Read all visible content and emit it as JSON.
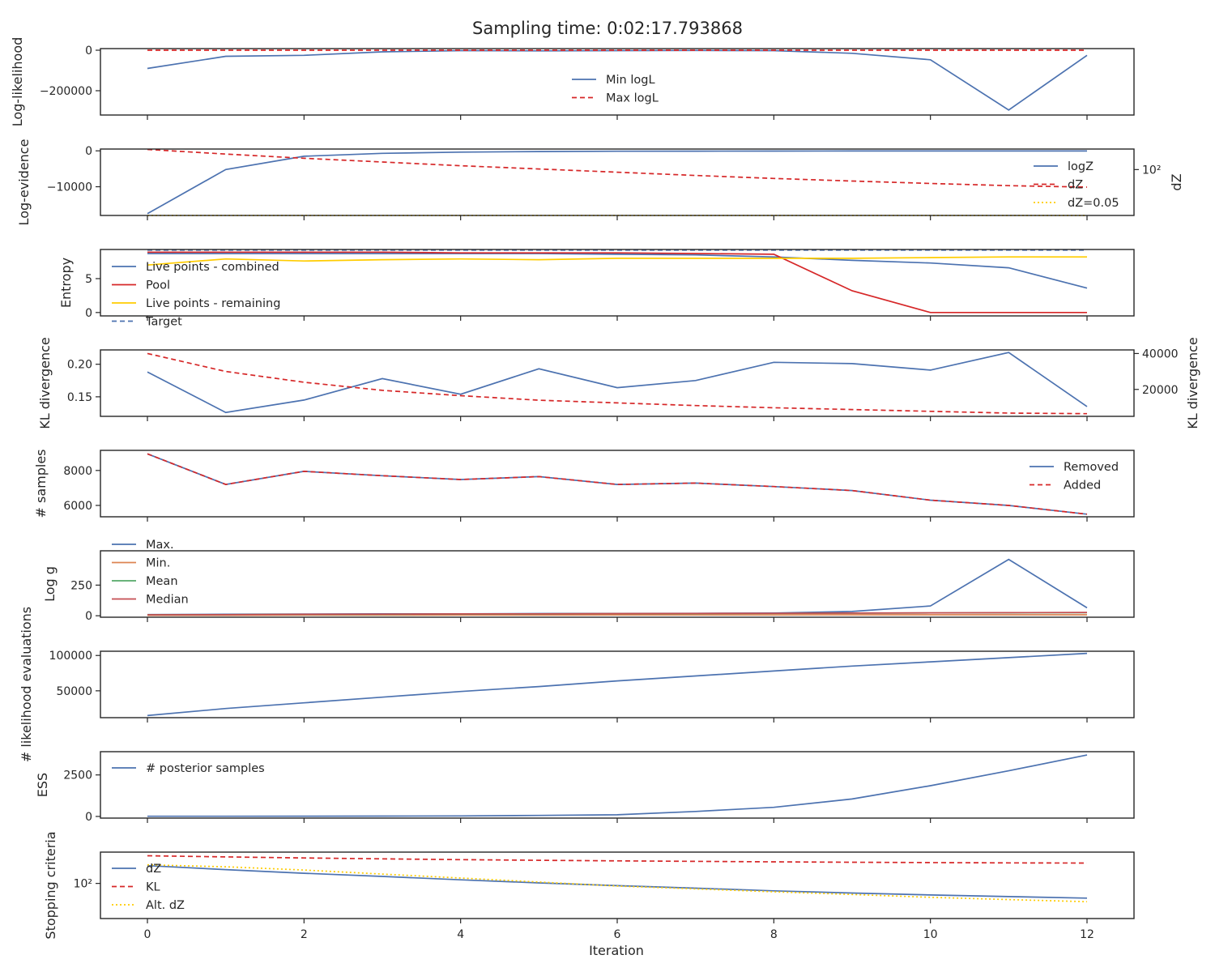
{
  "title": "Sampling time: 0:02:17.793868",
  "colors": {
    "blue": "#4c72b0",
    "red": "#d62728",
    "yellow": "#ffcc00",
    "orange": "#dd8452",
    "green": "#55a868",
    "crimson": "#c44e52"
  },
  "chart_data": [
    {
      "type": "line",
      "ylabel": "Log-likelihood",
      "ylim": [
        -320000,
        8000
      ],
      "yticks": [
        {
          "v": 0,
          "label": "0"
        },
        {
          "v": -200000,
          "label": "−200000"
        }
      ],
      "legend": {
        "position": "center",
        "entries": [
          "Min logL",
          "Max logL"
        ]
      },
      "series": [
        {
          "name": "Min logL",
          "color": "#4c72b0",
          "dash": "solid",
          "values": [
            -90000,
            -30000,
            -25000,
            -8000,
            -2000,
            -3000,
            -2000,
            -1000,
            -2000,
            -15000,
            -47000,
            -295000,
            -25000
          ]
        },
        {
          "name": "Max logL",
          "color": "#d62728",
          "dash": "dashed",
          "values": [
            0,
            0,
            0,
            0,
            0,
            0,
            0,
            0,
            0,
            0,
            0,
            0,
            0
          ]
        }
      ]
    },
    {
      "type": "line",
      "ylabel": "Log-evidence",
      "ylabel_right": "dZ",
      "ylim": [
        -18000,
        500
      ],
      "yticks": [
        {
          "v": 0,
          "label": "0"
        },
        {
          "v": -10000,
          "label": "−10000"
        }
      ],
      "yscale_right": "log",
      "ylim_right": [
        0.05,
        3000
      ],
      "yticks_right": [
        {
          "v": 100,
          "label": "10²"
        }
      ],
      "legend": {
        "position": "right",
        "entries": [
          "logZ",
          "dZ",
          "dZ=0.05"
        ]
      },
      "series": [
        {
          "name": "logZ",
          "color": "#4c72b0",
          "dash": "solid",
          "axis": "left",
          "values": [
            -17500,
            -5200,
            -1500,
            -700,
            -350,
            -200,
            -120,
            -80,
            -60,
            -50,
            -45,
            -42,
            -40
          ]
        },
        {
          "name": "dZ",
          "color": "#d62728",
          "dash": "dashed",
          "axis": "right",
          "values": [
            2800,
            1300,
            650,
            350,
            190,
            110,
            65,
            38,
            23,
            15,
            10,
            7,
            5.5
          ]
        },
        {
          "name": "dZ=0.05",
          "color": "#ffcc00",
          "dash": "dotted",
          "axis": "right",
          "values": [
            0.05,
            0.05,
            0.05,
            0.05,
            0.05,
            0.05,
            0.05,
            0.05,
            0.05,
            0.05,
            0.05,
            0.05,
            0.05
          ]
        }
      ]
    },
    {
      "type": "line",
      "ylabel": "Entropy",
      "ylim": [
        -0.5,
        9.3
      ],
      "yticks": [
        {
          "v": 0,
          "label": "0"
        },
        {
          "v": 5,
          "label": "5"
        }
      ],
      "legend": {
        "position": "left",
        "entries": [
          "Live points - combined",
          "Pool",
          "Live points - remaining",
          "Target"
        ]
      },
      "series": [
        {
          "name": "Live points - combined",
          "color": "#4c72b0",
          "dash": "solid",
          "values": [
            8.7,
            8.7,
            8.7,
            8.7,
            8.7,
            8.7,
            8.6,
            8.5,
            8.2,
            7.7,
            7.3,
            6.6,
            3.6
          ]
        },
        {
          "name": "Pool",
          "color": "#d62728",
          "dash": "solid",
          "values": [
            8.9,
            8.9,
            8.9,
            8.9,
            8.8,
            8.8,
            8.8,
            8.7,
            8.6,
            3.2,
            0,
            0,
            0
          ]
        },
        {
          "name": "Live points - remaining",
          "color": "#ffcc00",
          "dash": "solid",
          "values": [
            7.0,
            7.9,
            7.6,
            7.8,
            7.9,
            7.8,
            8.0,
            8.0,
            8.0,
            8.0,
            8.1,
            8.2,
            8.2
          ]
        },
        {
          "name": "Target",
          "color": "#4c72b0",
          "dash": "dashed",
          "values": [
            9.2,
            9.2,
            9.2,
            9.2,
            9.2,
            9.2,
            9.2,
            9.2,
            9.2,
            9.2,
            9.2,
            9.2,
            9.2
          ]
        }
      ]
    },
    {
      "type": "line",
      "ylabel": "KL divergence",
      "ylabel_right": "KL divergence",
      "ylim": [
        0.12,
        0.222
      ],
      "yticks": [
        {
          "v": 0.15,
          "label": "0.15"
        },
        {
          "v": 0.2,
          "label": "0.20"
        }
      ],
      "ylim_right": [
        5000,
        42000
      ],
      "yticks_right": [
        {
          "v": 20000,
          "label": "20000"
        },
        {
          "v": 40000,
          "label": "40000"
        }
      ],
      "series": [
        {
          "name": "",
          "color": "#4c72b0",
          "dash": "solid",
          "axis": "left",
          "values": [
            0.188,
            0.126,
            0.145,
            0.178,
            0.154,
            0.193,
            0.164,
            0.175,
            0.203,
            0.201,
            0.191,
            0.218,
            0.135
          ]
        },
        {
          "name": "",
          "color": "#d62728",
          "dash": "dashed",
          "axis": "right",
          "values": [
            40000,
            30000,
            24000,
            19500,
            16500,
            14000,
            12500,
            11000,
            9800,
            8800,
            7800,
            6800,
            6500
          ]
        }
      ]
    },
    {
      "type": "line",
      "ylabel": "# samples",
      "ylim": [
        5350,
        9150
      ],
      "yticks": [
        {
          "v": 6000,
          "label": "6000"
        },
        {
          "v": 8000,
          "label": "8000"
        }
      ],
      "legend": {
        "position": "right",
        "entries": [
          "Removed",
          "Added"
        ]
      },
      "series": [
        {
          "name": "Removed",
          "color": "#4c72b0",
          "dash": "solid",
          "values": [
            8950,
            7200,
            7950,
            7700,
            7480,
            7650,
            7200,
            7280,
            7080,
            6850,
            6300,
            6000,
            5500
          ]
        },
        {
          "name": "Added",
          "color": "#d62728",
          "dash": "dashed",
          "values": [
            8950,
            7200,
            7950,
            7700,
            7480,
            7650,
            7200,
            7280,
            7080,
            6850,
            6300,
            6000,
            5500
          ]
        }
      ]
    },
    {
      "type": "line",
      "ylabel": "Log g",
      "ylim": [
        -12,
        530
      ],
      "yticks": [
        {
          "v": 0,
          "label": "0"
        },
        {
          "v": 250,
          "label": "250"
        }
      ],
      "legend": {
        "position": "left",
        "entries": [
          "Max.",
          "Min.",
          "Mean",
          "Median"
        ]
      },
      "series": [
        {
          "name": "Max.",
          "color": "#4c72b0",
          "dash": "solid",
          "values": [
            10,
            12,
            14,
            15,
            16,
            18,
            19,
            20,
            22,
            35,
            80,
            460,
            65
          ]
        },
        {
          "name": "Min.",
          "color": "#dd8452",
          "dash": "solid",
          "values": [
            3,
            4,
            5,
            5,
            6,
            6,
            7,
            7,
            7,
            8,
            8,
            8,
            8
          ]
        },
        {
          "name": "Mean",
          "color": "#55a868",
          "dash": "solid",
          "values": [
            8,
            9,
            11,
            12,
            14,
            15,
            17,
            18,
            19,
            21,
            23,
            24,
            25
          ]
        },
        {
          "name": "Median",
          "color": "#c44e52",
          "dash": "solid",
          "values": [
            8,
            9,
            12,
            13,
            15,
            16,
            18,
            19,
            20,
            22,
            24,
            25,
            27
          ]
        }
      ]
    },
    {
      "type": "line",
      "ylabel": "# likelihood evaluations",
      "ylim": [
        12000,
        106000
      ],
      "yticks": [
        {
          "v": 50000,
          "label": "50000"
        },
        {
          "v": 100000,
          "label": "100000"
        }
      ],
      "series": [
        {
          "name": "",
          "color": "#4c72b0",
          "dash": "solid",
          "values": [
            15000,
            25000,
            33000,
            41000,
            49000,
            56000,
            64000,
            71000,
            78000,
            85000,
            91000,
            97000,
            103000
          ]
        }
      ]
    },
    {
      "type": "line",
      "ylabel": "ESS",
      "ylim": [
        -100,
        3900
      ],
      "yticks": [
        {
          "v": 0,
          "label": "0"
        },
        {
          "v": 2500,
          "label": "2500"
        }
      ],
      "legend": {
        "position": "left",
        "entries": [
          "# posterior samples"
        ]
      },
      "series": [
        {
          "name": "# posterior samples",
          "color": "#4c72b0",
          "dash": "solid",
          "values": [
            10,
            10,
            15,
            20,
            30,
            60,
            100,
            300,
            550,
            1050,
            1850,
            2750,
            3700
          ]
        }
      ]
    },
    {
      "type": "line",
      "ylabel": "Stopping criteria",
      "yscale": "log",
      "ylim": [
        0.12,
        40000
      ],
      "yticks": [
        {
          "v": 100,
          "label": "10²"
        }
      ],
      "legend": {
        "position": "left",
        "entries": [
          "dZ",
          "KL",
          "Alt. dZ"
        ]
      },
      "series": [
        {
          "name": "dZ",
          "color": "#4c72b0",
          "dash": "solid",
          "values": [
            3000,
            1400,
            700,
            380,
            200,
            110,
            65,
            40,
            24,
            16,
            11,
            8,
            6
          ]
        },
        {
          "name": "KL",
          "color": "#d62728",
          "dash": "dashed",
          "values": [
            20000,
            16000,
            13000,
            11000,
            9500,
            8300,
            7500,
            6800,
            6200,
            5800,
            5400,
            5100,
            4900
          ]
        },
        {
          "name": "Alt. dZ",
          "color": "#ffcc00",
          "dash": "dotted",
          "values": [
            3500,
            2400,
            1300,
            600,
            280,
            130,
            60,
            35,
            20,
            12,
            7,
            4.5,
            3
          ]
        }
      ]
    }
  ],
  "x": [
    0,
    1,
    2,
    3,
    4,
    5,
    6,
    7,
    8,
    9,
    10,
    11,
    12
  ],
  "xticks": [
    0,
    2,
    4,
    6,
    8,
    10,
    12
  ],
  "xlim": [
    -0.6,
    12.6
  ],
  "xlabel": "Iteration"
}
